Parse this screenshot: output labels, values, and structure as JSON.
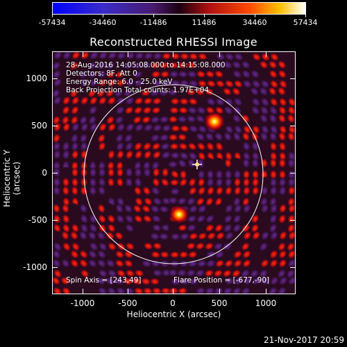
{
  "colorbar": {
    "labels": [
      "-57434",
      "-34460",
      "-11486",
      "11486",
      "34460",
      "57434"
    ]
  },
  "plot": {
    "title": "Reconstructed RHESSI Image",
    "info": [
      "28-Aug-2016 14:05:08.000 to 14:15:08.000",
      "Detectors: 8F, Att 0",
      "Energy Range: 6.0 - 25.0 keV",
      "Back Projection    Total counts: 1.97E+04"
    ],
    "spin_axis": "Spin Axis = [243,49]",
    "flare_position": "Flare Position = [-677,-90]",
    "xlabel": "Heliocentric X (arcsec)",
    "ylabel": "Heliocentric Y (arcsec)",
    "xticks": [
      "-1000",
      "-500",
      "0",
      "500",
      "1000"
    ],
    "yticks": [
      "1000",
      "500",
      "0",
      "-500",
      "-1000"
    ]
  },
  "footer": {
    "timestamp": "21-Nov-2017 20:59"
  },
  "colors": {
    "background": "#000000",
    "text": "#ffffff",
    "circle": "#ffffff"
  }
}
